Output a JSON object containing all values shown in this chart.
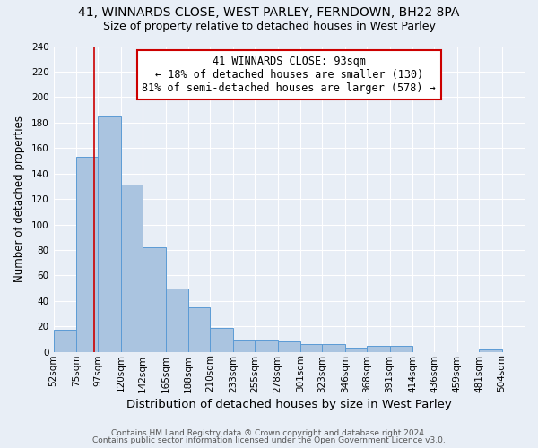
{
  "title1": "41, WINNARDS CLOSE, WEST PARLEY, FERNDOWN, BH22 8PA",
  "title2": "Size of property relative to detached houses in West Parley",
  "xlabel": "Distribution of detached houses by size in West Parley",
  "ylabel": "Number of detached properties",
  "footer1": "Contains HM Land Registry data ® Crown copyright and database right 2024.",
  "footer2": "Contains public sector information licensed under the Open Government Licence v3.0.",
  "bin_labels": [
    "52sqm",
    "75sqm",
    "97sqm",
    "120sqm",
    "142sqm",
    "165sqm",
    "188sqm",
    "210sqm",
    "233sqm",
    "255sqm",
    "278sqm",
    "301sqm",
    "323sqm",
    "346sqm",
    "368sqm",
    "391sqm",
    "414sqm",
    "436sqm",
    "459sqm",
    "481sqm",
    "504sqm"
  ],
  "bin_edges": [
    52,
    75,
    97,
    120,
    142,
    165,
    188,
    210,
    233,
    255,
    278,
    301,
    323,
    346,
    368,
    391,
    414,
    436,
    459,
    481,
    504,
    527
  ],
  "bar_heights": [
    17,
    153,
    185,
    131,
    82,
    50,
    35,
    19,
    9,
    9,
    8,
    6,
    6,
    3,
    5,
    5,
    0,
    0,
    0,
    2,
    0
  ],
  "bar_color": "#aac4e0",
  "bar_edge_color": "#5b9bd5",
  "property_size": 93,
  "vline_color": "#cc0000",
  "annotation_text": "41 WINNARDS CLOSE: 93sqm\n← 18% of detached houses are smaller (130)\n81% of semi-detached houses are larger (578) →",
  "annotation_box_edge": "#cc0000",
  "annotation_box_face": "#ffffff",
  "ylim": [
    0,
    240
  ],
  "yticks": [
    0,
    20,
    40,
    60,
    80,
    100,
    120,
    140,
    160,
    180,
    200,
    220,
    240
  ],
  "background_color": "#e8eef6",
  "grid_color": "#ffffff",
  "title1_fontsize": 10,
  "title2_fontsize": 9,
  "xlabel_fontsize": 9.5,
  "ylabel_fontsize": 8.5,
  "tick_fontsize": 7.5,
  "annotation_fontsize": 8.5,
  "footer_fontsize": 6.5
}
